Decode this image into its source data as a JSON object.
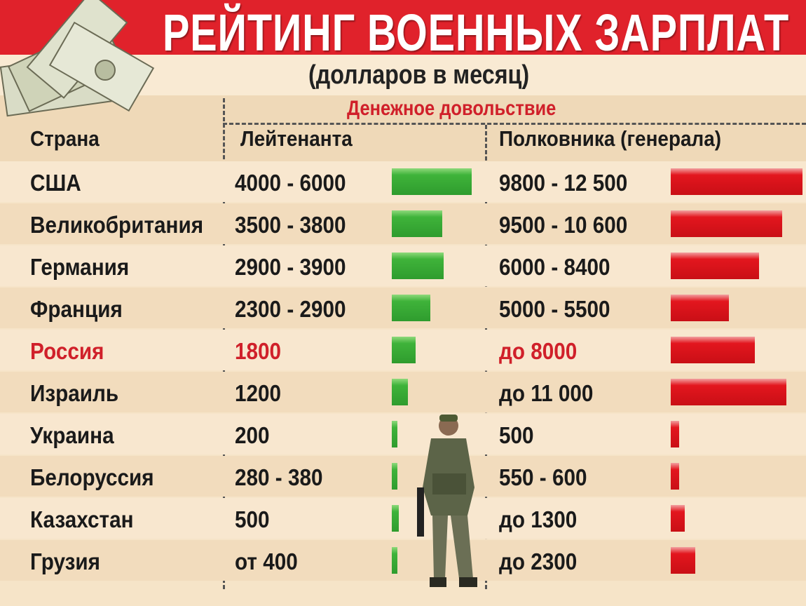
{
  "title": "РЕЙТИНГ ВОЕННЫХ ЗАРПЛАТ",
  "subtitle": "(долларов в месяц)",
  "group_header": "Денежное довольствие",
  "columns": {
    "country": "Страна",
    "lieutenant": "Лейтенанта",
    "colonel": "Полковника (генерала)"
  },
  "colors": {
    "banner": "#e0222b",
    "lieutenant_bar": "#3fb33a",
    "colonel_bar": "#e3161e",
    "highlight": "#d0202a"
  },
  "icons": [
    "money-stack-icon",
    "soldier-illustration"
  ],
  "chart_data": {
    "type": "table",
    "rows": [
      {
        "country": "США",
        "lieutenant": "4000 - 6000",
        "colonel": "9800 - 12 500",
        "lt_value": 6000,
        "col_value": 12500
      },
      {
        "country": "Великобритания",
        "lieutenant": "3500 - 3800",
        "colonel": "9500 - 10 600",
        "lt_value": 3800,
        "col_value": 10600
      },
      {
        "country": "Германия",
        "lieutenant": "2900 - 3900",
        "colonel": "6000 - 8400",
        "lt_value": 3900,
        "col_value": 8400
      },
      {
        "country": "Франция",
        "lieutenant": "2300 - 2900",
        "colonel": "5000 - 5500",
        "lt_value": 2900,
        "col_value": 5500
      },
      {
        "country": "Россия",
        "lieutenant": "1800",
        "colonel": "до 8000",
        "lt_value": 1800,
        "col_value": 8000,
        "highlight": true
      },
      {
        "country": "Израиль",
        "lieutenant": "1200",
        "colonel": "до 11 000",
        "lt_value": 1200,
        "col_value": 11000
      },
      {
        "country": "Украина",
        "lieutenant": "200",
        "colonel": "500",
        "lt_value": 200,
        "col_value": 500
      },
      {
        "country": "Белоруссия",
        "lieutenant": "280 - 380",
        "colonel": "550 - 600",
        "lt_value": 380,
        "col_value": 600
      },
      {
        "country": "Казахстан",
        "lieutenant": "500",
        "colonel": "до 1300",
        "lt_value": 500,
        "col_value": 1300
      },
      {
        "country": "Грузия",
        "lieutenant": "от 400",
        "colonel": "до 2300",
        "lt_value": 400,
        "col_value": 2300
      }
    ]
  }
}
